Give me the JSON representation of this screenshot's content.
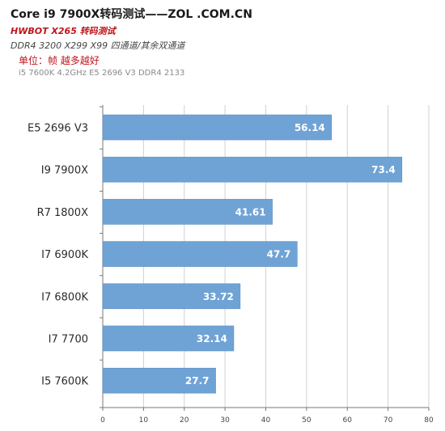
{
  "header": {
    "title": "Core i9 7900X转码测试——ZOL .COM.CN",
    "subtitle1": "HWBOT X265   转码测试",
    "subtitle2": "DDR4 3200   X299 X99  四通道/其余双通道",
    "unit": "单位：帧 越多越好",
    "platform": "i5 7600K 4.2GHz E5 2696 V3 DDR4 2133"
  },
  "chart_data": {
    "type": "bar",
    "orientation": "horizontal",
    "categories": [
      "E5 2696 V3",
      "I9 7900X",
      "R7 1800X",
      "I7 6900K",
      "I7 6800K",
      "I7 7700",
      "I5 7600K"
    ],
    "values": [
      56.14,
      73.4,
      41.61,
      47.7,
      33.72,
      32.14,
      27.7
    ],
    "value_labels": [
      "56.14",
      "73.4",
      "41.61",
      "47.7",
      "33.72",
      "32.14",
      "27.7"
    ],
    "xlim": [
      0,
      80
    ],
    "x_ticks": [
      "0",
      "10",
      "20",
      "30",
      "40",
      "50",
      "60",
      "70",
      "80"
    ],
    "grid": true,
    "colors": {
      "bar": "#6fa3d6",
      "bar_edge": "#5b8fc4",
      "grid": "#d0d0d0",
      "axis": "#777777"
    }
  }
}
